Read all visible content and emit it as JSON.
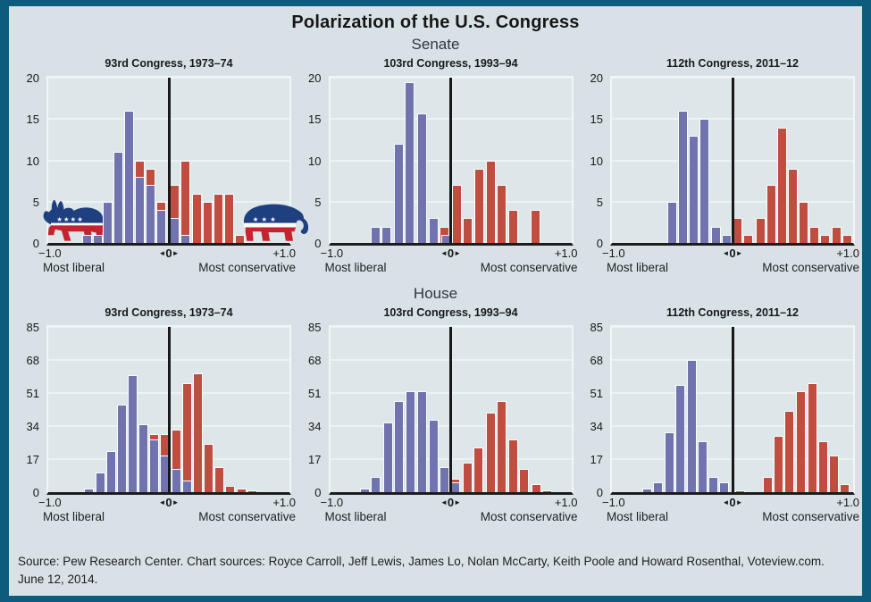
{
  "header": {
    "title": "Polarization of the U.S. Congress"
  },
  "sections": [
    {
      "label": "Senate"
    },
    {
      "label": "House"
    }
  ],
  "axis": {
    "x_min_label": "−1.0",
    "x_max_label": "+1.0",
    "x_zero_label": "0",
    "zero_arrow_left": "◄",
    "zero_arrow_right": "►",
    "caption_left": "Most liberal",
    "caption_right": "Most conservative"
  },
  "icons": {
    "left_logo": "democratic-party-donkey",
    "right_logo": "republican-party-elephant"
  },
  "colors": {
    "democrat_bar": "#7173ae",
    "republican_bar": "#c04d40",
    "background": "#d8e2e6",
    "frame_border": "#0d5c7e",
    "axis_line": "#1c1c1c",
    "gridline": "#edf2f4",
    "logo_blue": "#1f4080",
    "logo_red": "#c5232d"
  },
  "footer": {
    "source": "Source: Pew Research Center. Chart sources: Royce Carroll, Jeff Lewis, James Lo, Nolan McCarty, Keith Poole and Howard Rosenthal, Voteview.com. June 12, 2014."
  },
  "chart_data": [
    {
      "id": "senate-93",
      "section": "Senate",
      "title": "93rd Congress, 1973–74",
      "type": "bar",
      "x_range": [
        -1.0,
        1.0
      ],
      "y_max": 20,
      "y_ticks": [
        0,
        5,
        10,
        15,
        20
      ],
      "bars": [
        {
          "x": -0.68,
          "h": 1,
          "party": "D"
        },
        {
          "x": -0.59,
          "h": 1,
          "party": "D"
        },
        {
          "x": -0.51,
          "h": 5,
          "party": "D"
        },
        {
          "x": -0.42,
          "h": 11,
          "party": "D"
        },
        {
          "x": -0.33,
          "h": 16,
          "party": "D"
        },
        {
          "x": -0.24,
          "h": 10,
          "party": "R"
        },
        {
          "x": -0.24,
          "h": 8,
          "party": "D"
        },
        {
          "x": -0.15,
          "h": 9,
          "party": "R"
        },
        {
          "x": -0.15,
          "h": 7,
          "party": "D"
        },
        {
          "x": -0.06,
          "h": 5,
          "party": "R"
        },
        {
          "x": -0.06,
          "h": 4,
          "party": "D"
        },
        {
          "x": 0.05,
          "h": 7,
          "party": "R"
        },
        {
          "x": 0.05,
          "h": 3,
          "party": "D"
        },
        {
          "x": 0.14,
          "h": 10,
          "party": "R"
        },
        {
          "x": 0.14,
          "h": 1,
          "party": "D"
        },
        {
          "x": 0.23,
          "h": 6,
          "party": "R"
        },
        {
          "x": 0.32,
          "h": 5,
          "party": "R"
        },
        {
          "x": 0.41,
          "h": 6,
          "party": "R"
        },
        {
          "x": 0.5,
          "h": 6,
          "party": "R"
        },
        {
          "x": 0.59,
          "h": 1,
          "party": "R"
        }
      ]
    },
    {
      "id": "senate-103",
      "section": "Senate",
      "title": "103rd Congress, 1993–94",
      "type": "bar",
      "x_range": [
        -1.0,
        1.0
      ],
      "y_max": 20,
      "y_ticks": [
        0,
        5,
        10,
        15,
        20
      ],
      "bars": [
        {
          "x": -0.62,
          "h": 2,
          "party": "D"
        },
        {
          "x": -0.53,
          "h": 2,
          "party": "D"
        },
        {
          "x": -0.43,
          "h": 12,
          "party": "D"
        },
        {
          "x": -0.34,
          "h": 19.5,
          "party": "D"
        },
        {
          "x": -0.24,
          "h": 15.7,
          "party": "D"
        },
        {
          "x": -0.14,
          "h": 3,
          "party": "D"
        },
        {
          "x": -0.05,
          "h": 2,
          "party": "R"
        },
        {
          "x": -0.04,
          "h": 1,
          "party": "D"
        },
        {
          "x": 0.05,
          "h": 7,
          "party": "R"
        },
        {
          "x": 0.14,
          "h": 3,
          "party": "R"
        },
        {
          "x": 0.24,
          "h": 9,
          "party": "R"
        },
        {
          "x": 0.33,
          "h": 10,
          "party": "R"
        },
        {
          "x": 0.42,
          "h": 7,
          "party": "R"
        },
        {
          "x": 0.52,
          "h": 4,
          "party": "R"
        },
        {
          "x": 0.7,
          "h": 4,
          "party": "R"
        }
      ]
    },
    {
      "id": "senate-112",
      "section": "Senate",
      "title": "112th Congress, 2011–12",
      "type": "bar",
      "x_range": [
        -1.0,
        1.0
      ],
      "y_max": 20,
      "y_ticks": [
        0,
        5,
        10,
        15,
        20
      ],
      "bars": [
        {
          "x": -0.5,
          "h": 5,
          "party": "D"
        },
        {
          "x": -0.41,
          "h": 16,
          "party": "D"
        },
        {
          "x": -0.32,
          "h": 13,
          "party": "D"
        },
        {
          "x": -0.23,
          "h": 15,
          "party": "D"
        },
        {
          "x": -0.14,
          "h": 2,
          "party": "D"
        },
        {
          "x": -0.05,
          "h": 1,
          "party": "D"
        },
        {
          "x": 0.04,
          "h": 3,
          "party": "R"
        },
        {
          "x": 0.13,
          "h": 1,
          "party": "R"
        },
        {
          "x": 0.23,
          "h": 3,
          "party": "R"
        },
        {
          "x": 0.32,
          "h": 7,
          "party": "R"
        },
        {
          "x": 0.41,
          "h": 14,
          "party": "R"
        },
        {
          "x": 0.5,
          "h": 9,
          "party": "R"
        },
        {
          "x": 0.59,
          "h": 5,
          "party": "R"
        },
        {
          "x": 0.68,
          "h": 2,
          "party": "R"
        },
        {
          "x": 0.77,
          "h": 1,
          "party": "R"
        },
        {
          "x": 0.86,
          "h": 2,
          "party": "R"
        },
        {
          "x": 0.95,
          "h": 1,
          "party": "R"
        }
      ]
    },
    {
      "id": "house-93",
      "section": "House",
      "title": "93rd Congress, 1973–74",
      "type": "bar",
      "x_range": [
        -1.0,
        1.0
      ],
      "y_max": 85,
      "y_ticks": [
        0,
        17,
        34,
        51,
        68,
        85
      ],
      "bars": [
        {
          "x": -0.66,
          "h": 2,
          "party": "D"
        },
        {
          "x": -0.57,
          "h": 10,
          "party": "D"
        },
        {
          "x": -0.48,
          "h": 21,
          "party": "D"
        },
        {
          "x": -0.39,
          "h": 45,
          "party": "D"
        },
        {
          "x": -0.3,
          "h": 60,
          "party": "D"
        },
        {
          "x": -0.21,
          "h": 35,
          "party": "D"
        },
        {
          "x": -0.12,
          "h": 30,
          "party": "R"
        },
        {
          "x": -0.12,
          "h": 27,
          "party": "D"
        },
        {
          "x": -0.03,
          "h": 30,
          "party": "R"
        },
        {
          "x": -0.03,
          "h": 19,
          "party": "D"
        },
        {
          "x": 0.06,
          "h": 32,
          "party": "R"
        },
        {
          "x": 0.06,
          "h": 12,
          "party": "D"
        },
        {
          "x": 0.15,
          "h": 56,
          "party": "R"
        },
        {
          "x": 0.15,
          "h": 6,
          "party": "D"
        },
        {
          "x": 0.24,
          "h": 61,
          "party": "R"
        },
        {
          "x": 0.33,
          "h": 25,
          "party": "R"
        },
        {
          "x": 0.42,
          "h": 13,
          "party": "R"
        },
        {
          "x": 0.51,
          "h": 3,
          "party": "R"
        },
        {
          "x": 0.6,
          "h": 2,
          "party": "R"
        },
        {
          "x": 0.69,
          "h": 1,
          "party": "R"
        }
      ]
    },
    {
      "id": "house-103",
      "section": "House",
      "title": "103rd Congress, 1993–94",
      "type": "bar",
      "x_range": [
        -1.0,
        1.0
      ],
      "y_max": 85,
      "y_ticks": [
        0,
        17,
        34,
        51,
        68,
        85
      ],
      "bars": [
        {
          "x": -0.71,
          "h": 2,
          "party": "D"
        },
        {
          "x": -0.62,
          "h": 8,
          "party": "D"
        },
        {
          "x": -0.52,
          "h": 36,
          "party": "D"
        },
        {
          "x": -0.43,
          "h": 47,
          "party": "D"
        },
        {
          "x": -0.33,
          "h": 52,
          "party": "D"
        },
        {
          "x": -0.24,
          "h": 52,
          "party": "D"
        },
        {
          "x": -0.14,
          "h": 37,
          "party": "D"
        },
        {
          "x": -0.05,
          "h": 13,
          "party": "D"
        },
        {
          "x": 0.04,
          "h": 7,
          "party": "R"
        },
        {
          "x": 0.04,
          "h": 5,
          "party": "D"
        },
        {
          "x": 0.14,
          "h": 15,
          "party": "R"
        },
        {
          "x": 0.23,
          "h": 23,
          "party": "R"
        },
        {
          "x": 0.33,
          "h": 41,
          "party": "R"
        },
        {
          "x": 0.42,
          "h": 47,
          "party": "R"
        },
        {
          "x": 0.52,
          "h": 27,
          "party": "R"
        },
        {
          "x": 0.61,
          "h": 12,
          "party": "R"
        },
        {
          "x": 0.71,
          "h": 4,
          "party": "R"
        },
        {
          "x": 0.8,
          "h": 1,
          "party": "R"
        }
      ]
    },
    {
      "id": "house-112",
      "section": "House",
      "title": "112th Congress, 2011–12",
      "type": "bar",
      "x_range": [
        -1.0,
        1.0
      ],
      "y_max": 85,
      "y_ticks": [
        0,
        17,
        34,
        51,
        68,
        85
      ],
      "bars": [
        {
          "x": -0.71,
          "h": 2,
          "party": "D"
        },
        {
          "x": -0.62,
          "h": 5,
          "party": "D"
        },
        {
          "x": -0.52,
          "h": 31,
          "party": "D"
        },
        {
          "x": -0.43,
          "h": 55,
          "party": "D"
        },
        {
          "x": -0.34,
          "h": 68,
          "party": "D"
        },
        {
          "x": -0.25,
          "h": 26,
          "party": "D"
        },
        {
          "x": -0.16,
          "h": 8,
          "party": "D"
        },
        {
          "x": -0.07,
          "h": 5,
          "party": "D"
        },
        {
          "x": 0.06,
          "h": 1,
          "party": "D"
        },
        {
          "x": 0.29,
          "h": 8,
          "party": "R"
        },
        {
          "x": 0.38,
          "h": 29,
          "party": "R"
        },
        {
          "x": 0.47,
          "h": 42,
          "party": "R"
        },
        {
          "x": 0.57,
          "h": 52,
          "party": "R"
        },
        {
          "x": 0.66,
          "h": 56,
          "party": "R"
        },
        {
          "x": 0.75,
          "h": 26,
          "party": "R"
        },
        {
          "x": 0.84,
          "h": 19,
          "party": "R"
        },
        {
          "x": 0.93,
          "h": 4,
          "party": "R"
        }
      ]
    }
  ]
}
